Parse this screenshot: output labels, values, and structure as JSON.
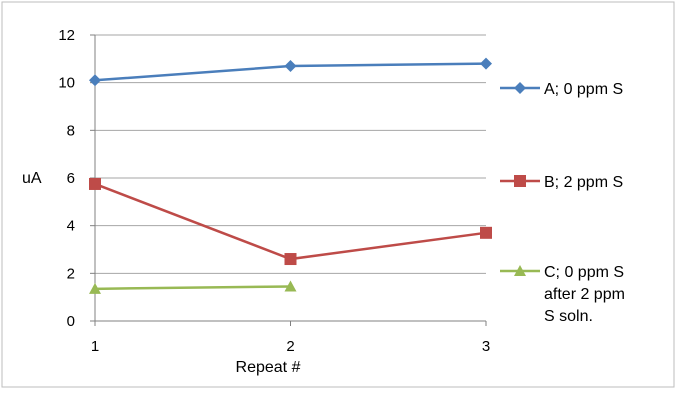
{
  "chart_data": {
    "type": "line",
    "title": "",
    "xlabel": "Repeat #",
    "ylabel": "uA",
    "x": [
      1,
      2,
      3
    ],
    "ylim": [
      0,
      12
    ],
    "yticks": [
      0,
      2,
      4,
      6,
      8,
      10,
      12
    ],
    "grid": "horizontal",
    "legend_position": "right",
    "series": [
      {
        "name_lines": [
          "A; 0 ppm S"
        ],
        "color": "#4a7ebb",
        "marker": "diamond",
        "values": [
          10.1,
          10.7,
          10.8
        ]
      },
      {
        "name_lines": [
          "B; 2 ppm S"
        ],
        "color": "#be4b48",
        "marker": "square",
        "values": [
          5.75,
          2.6,
          3.7
        ]
      },
      {
        "name_lines": [
          "C; 0 ppm S",
          "after 2 ppm",
          "S soln."
        ],
        "color": "#98b954",
        "marker": "triangle",
        "values": [
          1.35,
          1.45,
          null
        ]
      }
    ]
  }
}
